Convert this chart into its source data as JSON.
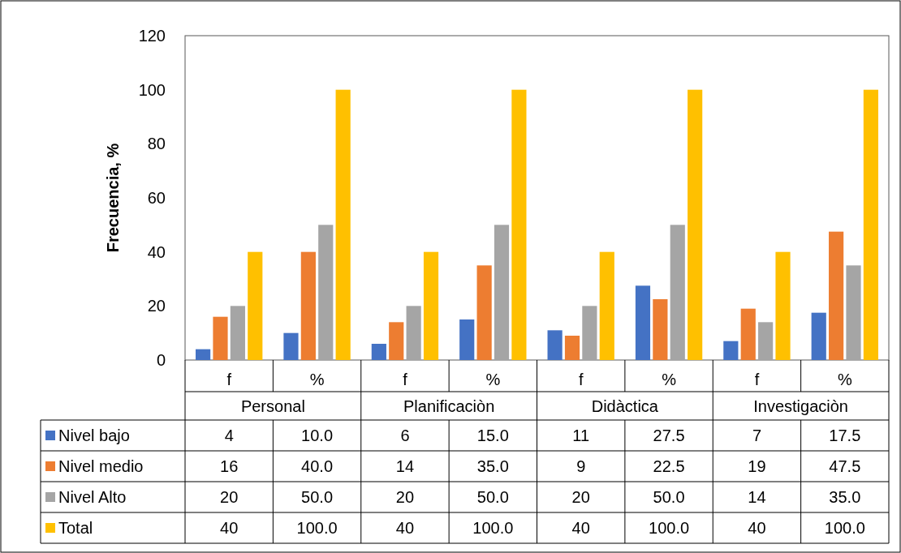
{
  "chart_data": {
    "type": "bar",
    "ylabel": "Frecuencia, %",
    "categories": [
      "f",
      "%",
      "f",
      "%",
      "f",
      "%",
      "f",
      "%"
    ],
    "annotations": [
      "Personal",
      "Planificaciòn",
      "Didàctica",
      "Investigaciòn"
    ],
    "series": [
      {
        "name": "Nivel bajo",
        "color": "#4472c4",
        "values": [
          4,
          10,
          6,
          15,
          11,
          27.5,
          7,
          17.5
        ],
        "value_labels": [
          "4",
          "10.0",
          "6",
          "15.0",
          "11",
          "27.5",
          "7",
          "17.5"
        ]
      },
      {
        "name": "Nivel medio",
        "color": "#ed7d31",
        "values": [
          16,
          40,
          14,
          35,
          9,
          22.5,
          19,
          47.5
        ],
        "value_labels": [
          "16",
          "40.0",
          "14",
          "35.0",
          "9",
          "22.5",
          "19",
          "47.5"
        ]
      },
      {
        "name": "Nivel Alto",
        "color": "#a5a5a5",
        "values": [
          20,
          50,
          20,
          50,
          20,
          50,
          14,
          35
        ],
        "value_labels": [
          "20",
          "50.0",
          "20",
          "50.0",
          "20",
          "50.0",
          "14",
          "35.0"
        ]
      },
      {
        "name": "Total",
        "color": "#ffc000",
        "values": [
          40,
          100,
          40,
          100,
          40,
          100,
          40,
          100
        ],
        "value_labels": [
          "40",
          "100.0",
          "40",
          "100.0",
          "40",
          "100.0",
          "40",
          "100.0"
        ]
      }
    ],
    "ylim": [
      0,
      120
    ],
    "yticks": [
      0,
      20,
      40,
      60,
      80,
      100,
      120
    ],
    "grid": false,
    "legend": "bottom left"
  }
}
